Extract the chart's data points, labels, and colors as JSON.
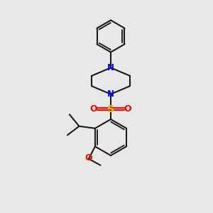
{
  "bg_color": "#e8e8e8",
  "bond_color": "#1a1a1a",
  "N_color": "#0000ff",
  "S_color": "#cccc00",
  "O_color": "#ff0000",
  "line_width": 1.5,
  "figsize": [
    3.0,
    3.0
  ],
  "dpi": 100,
  "xlim": [
    0,
    10
  ],
  "ylim": [
    0,
    10
  ]
}
